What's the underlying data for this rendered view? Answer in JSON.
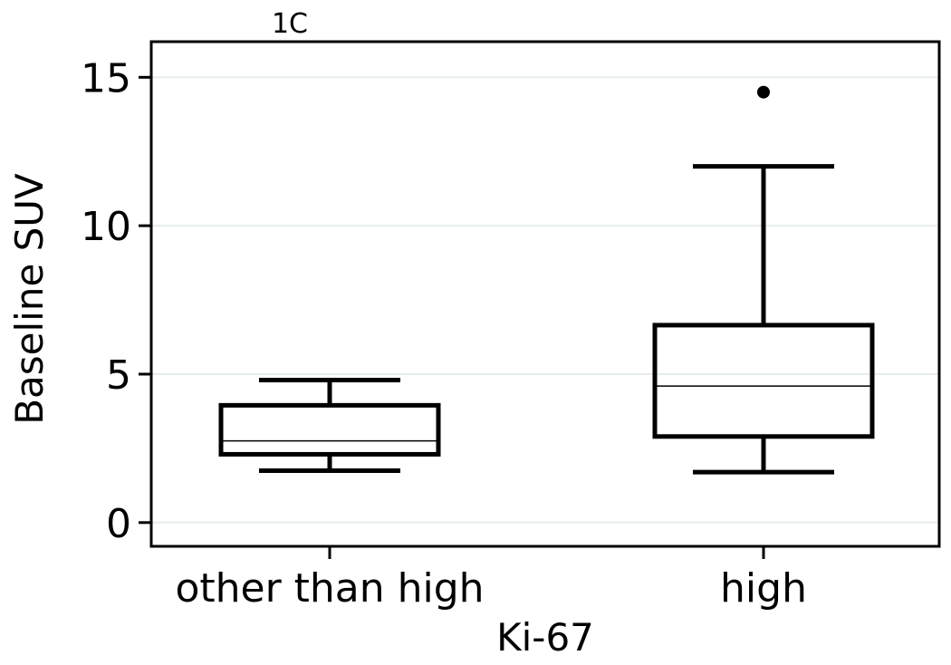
{
  "chart_data": {
    "type": "boxplot",
    "panel_label": "1C",
    "xlabel": "Ki-67",
    "ylabel": "Baseline SUV",
    "categories": [
      "other than high",
      "high"
    ],
    "ylim": [
      -0.8,
      16.2
    ],
    "yticks": [
      0,
      5,
      10,
      15
    ],
    "grid": "horizontal",
    "boxes": [
      {
        "category": "other than high",
        "whisker_low": 1.75,
        "q1": 2.3,
        "median": 2.75,
        "q3": 3.95,
        "whisker_high": 4.8,
        "outliers": []
      },
      {
        "category": "high",
        "whisker_low": 1.7,
        "q1": 2.9,
        "median": 4.6,
        "q3": 6.65,
        "whisker_high": 12.0,
        "outliers": [
          14.5
        ]
      }
    ],
    "colors": {
      "box_line": "#000000",
      "median_line": "#000000",
      "grid": "#e6ecec",
      "background": "#ffffff"
    }
  }
}
